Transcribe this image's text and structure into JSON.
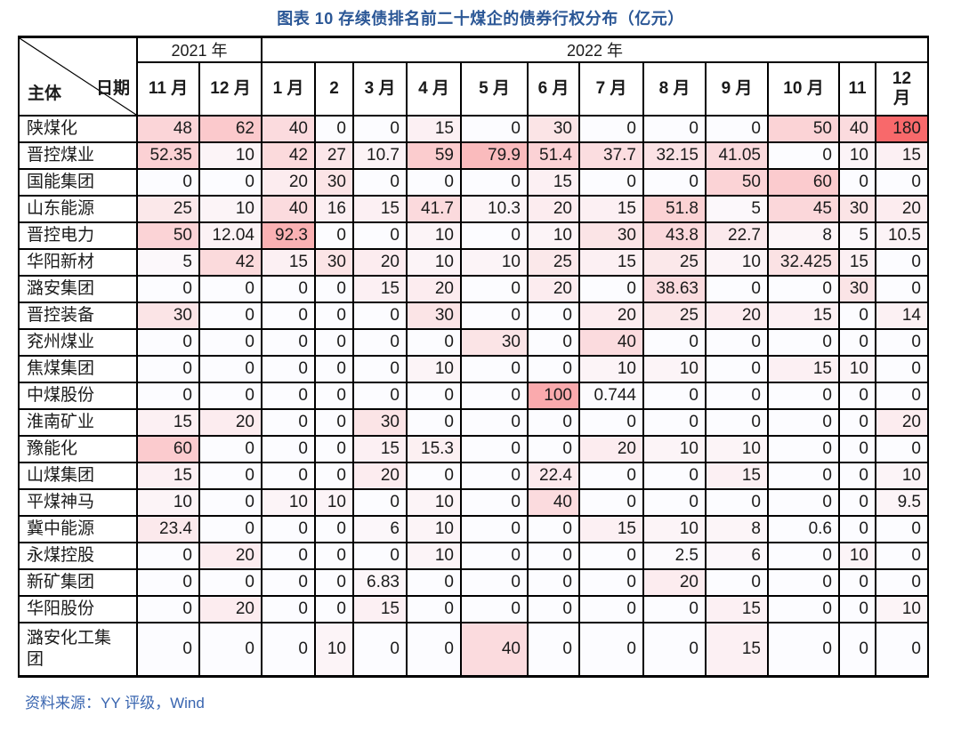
{
  "title": "图表 10 存续债排名前二十煤企的债券行权分布（亿元）",
  "source": "资料来源：YY 评级，Wind",
  "table": {
    "corner": {
      "top_right": "日期",
      "bottom_left": "主体"
    },
    "year_groups": [
      {
        "label": "2021 年",
        "span": 2
      },
      {
        "label": "2022 年",
        "span": 12
      }
    ]
  },
  "chart_data": {
    "type": "heatmap",
    "title": "图表 10 存续债排名前二十煤企的债券行权分布（亿元）",
    "units": "亿元",
    "col_groups": [
      {
        "label": "2021 年",
        "span": 2
      },
      {
        "label": "2022 年",
        "span": 12
      }
    ],
    "col_labels": [
      "11 月",
      "12 月",
      "1 月",
      "2",
      "3 月",
      "4 月",
      "5 月",
      "6 月",
      "7 月",
      "8 月",
      "9 月",
      "10 月",
      "11",
      "12 月"
    ],
    "row_labels": [
      "陕煤化",
      "晋控煤业",
      "国能集团",
      "山东能源",
      "晋控电力",
      "华阳新材",
      "潞安集团",
      "晋控装备",
      "兖州煤业",
      "焦煤集团",
      "中煤股份",
      "淮南矿业",
      "豫能化",
      "山煤集团",
      "平煤神马",
      "冀中能源",
      "永煤控股",
      "新矿集团",
      "华阳股份",
      "潞安化工集团"
    ],
    "values": [
      [
        48,
        62,
        40,
        0,
        0,
        15,
        0,
        30,
        0,
        0,
        0,
        50,
        40,
        180
      ],
      [
        52.35,
        10,
        42,
        27,
        10.7,
        59,
        79.9,
        51.4,
        37.7,
        32.15,
        41.05,
        0,
        10,
        15
      ],
      [
        0,
        0,
        20,
        30,
        0,
        0,
        0,
        15,
        0,
        0,
        50,
        60,
        0,
        0
      ],
      [
        25,
        10,
        40,
        16,
        15,
        41.7,
        10.3,
        20,
        15,
        51.8,
        5,
        45,
        30,
        20
      ],
      [
        50,
        12.04,
        92.3,
        0,
        0,
        10,
        0,
        10,
        30,
        43.8,
        22.7,
        8,
        5,
        10.5
      ],
      [
        5,
        42,
        15,
        30,
        20,
        10,
        10,
        25,
        15,
        25,
        10,
        32.425,
        15,
        0
      ],
      [
        0,
        0,
        0,
        0,
        15,
        20,
        0,
        20,
        0,
        38.63,
        0,
        0,
        30,
        0
      ],
      [
        30,
        0,
        0,
        0,
        0,
        30,
        0,
        0,
        20,
        25,
        20,
        15,
        0,
        14
      ],
      [
        0,
        0,
        0,
        0,
        0,
        0,
        30,
        0,
        40,
        0,
        0,
        0,
        0,
        0
      ],
      [
        0,
        0,
        0,
        0,
        0,
        10,
        0,
        0,
        10,
        10,
        0,
        15,
        10,
        0
      ],
      [
        0,
        0,
        0,
        0,
        0,
        0,
        0,
        100,
        0.744,
        0,
        0,
        0,
        0,
        0
      ],
      [
        15,
        20,
        0,
        0,
        30,
        0,
        0,
        0,
        0,
        0,
        0,
        0,
        0,
        20
      ],
      [
        60,
        0,
        0,
        0,
        15,
        15.3,
        0,
        0,
        20,
        10,
        10,
        0,
        0,
        0
      ],
      [
        15,
        0,
        0,
        0,
        20,
        0,
        0,
        22.4,
        0,
        0,
        15,
        0,
        0,
        10
      ],
      [
        10,
        0,
        10,
        10,
        0,
        10,
        0,
        40,
        0,
        0,
        0,
        0,
        0,
        9.5
      ],
      [
        23.4,
        0,
        0,
        0,
        6,
        10,
        0,
        0,
        15,
        10,
        8,
        0.6,
        0,
        0
      ],
      [
        0,
        20,
        0,
        0,
        0,
        10,
        0,
        0,
        0,
        2.5,
        6,
        0,
        10,
        0
      ],
      [
        0,
        0,
        0,
        0,
        6.83,
        0,
        0,
        0,
        0,
        20,
        0,
        0,
        0,
        0
      ],
      [
        0,
        20,
        0,
        0,
        15,
        0,
        0,
        0,
        0,
        0,
        15,
        0,
        0,
        10
      ],
      [
        0,
        0,
        0,
        10,
        0,
        0,
        40,
        0,
        0,
        0,
        15,
        0,
        0,
        0
      ]
    ],
    "color_scale": {
      "min_value": 0,
      "max_value": 180,
      "min_color": "#FCFCFF",
      "max_color": "#F8696B"
    },
    "legend_position": "none",
    "source": "资料来源：YY 评级，Wind",
    "accent_colors": {
      "title_blue": "#2B5796",
      "source_blue": "#3A66B0",
      "grid": "#000000"
    }
  }
}
